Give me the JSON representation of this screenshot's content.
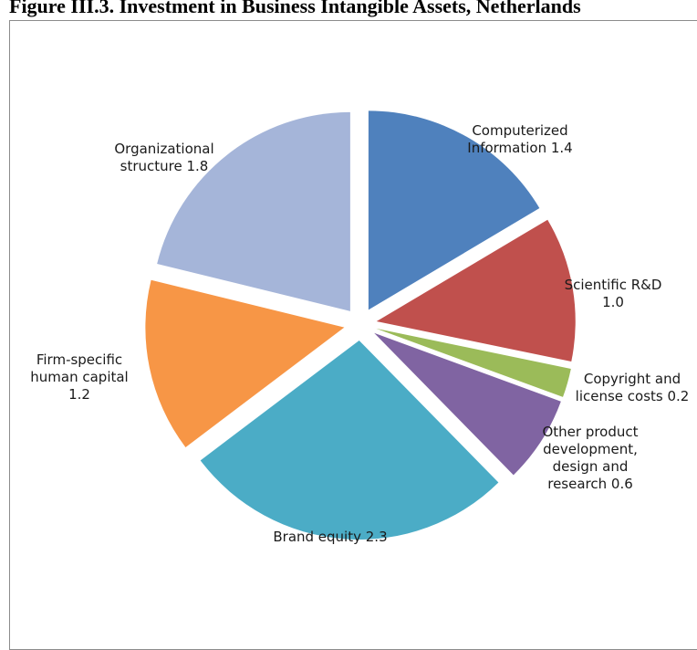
{
  "title": "Figure III.3. Investment in Business Intangible Assets, Netherlands",
  "chart_data": {
    "type": "pie",
    "title": "Figure III.3. Investment in Business Intangible Assets, Netherlands",
    "exploded": true,
    "categories": [
      "Computerized Information",
      "Scientific R&D",
      "Copyright and license costs",
      "Other product development, design and research",
      "Brand equity",
      "Firm-specific human capital",
      "Organizational structure"
    ],
    "values": [
      1.4,
      1.0,
      0.2,
      0.6,
      2.3,
      1.2,
      1.8
    ],
    "labels": [
      [
        "Computerized",
        "Information 1.4"
      ],
      [
        "Scientific R&D",
        "1.0"
      ],
      [
        "Copyright and",
        "license costs 0.2"
      ],
      [
        "Other product",
        "development,",
        "design and",
        "research 0.6"
      ],
      [
        "Brand equity 2.3"
      ],
      [
        "Firm-specific",
        "human capital",
        "1.2"
      ],
      [
        "Organizational",
        "structure 1.8"
      ]
    ],
    "colors": [
      "#4f81bd",
      "#c0504d",
      "#9bbb59",
      "#8064a2",
      "#4bacc6",
      "#f79646",
      "#a5b5d9"
    ],
    "legend": "none"
  }
}
